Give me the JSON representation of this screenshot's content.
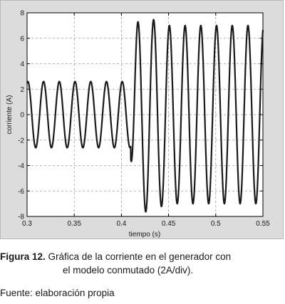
{
  "chart_data": {
    "type": "line",
    "xlabel": "tiempo (s)",
    "ylabel": "corriente (A)",
    "xlim": [
      0.3,
      0.55
    ],
    "ylim": [
      -8,
      8
    ],
    "xticks": [
      0.3,
      0.35,
      0.4,
      0.45,
      0.5,
      0.55
    ],
    "xtick_labels": [
      "0.3",
      "0.35",
      "0.4",
      "0.45",
      "0.5",
      "0.55"
    ],
    "yticks": [
      -8,
      -6,
      -4,
      -2,
      0,
      2,
      4,
      6,
      8
    ],
    "ytick_labels": [
      "-8",
      "-6",
      "-4",
      "-2",
      "0",
      "2",
      "4",
      "6",
      "8"
    ],
    "grid": true,
    "series": [
      {
        "frequency_hz": 60,
        "amplitude_before_a": 2.6,
        "amplitude_after_a": 7.0,
        "switch_time_s": 0.41,
        "peak_value_a": 8.0,
        "peak_time_s": 0.445,
        "min_value_a": -7.7
      }
    ]
  },
  "caption": {
    "label": "Figura 12.",
    "text_line1": " Gráfica de la corriente en el generador con",
    "text_line2": "el modelo conmutado (2A/div)."
  },
  "source": "Fuente: elaboración propia"
}
